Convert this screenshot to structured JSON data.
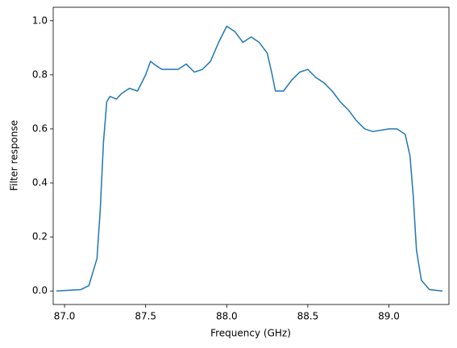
{
  "chart_data": {
    "type": "line",
    "xlabel": "Frequency (GHz)",
    "ylabel": "Filter response",
    "color": "#1f77b4",
    "x": [
      86.95,
      87.1,
      87.15,
      87.2,
      87.22,
      87.24,
      87.26,
      87.28,
      87.32,
      87.35,
      87.4,
      87.45,
      87.5,
      87.53,
      87.55,
      87.6,
      87.7,
      87.75,
      87.8,
      87.85,
      87.9,
      87.95,
      88.0,
      88.05,
      88.1,
      88.15,
      88.2,
      88.25,
      88.28,
      88.3,
      88.35,
      88.4,
      88.45,
      88.5,
      88.55,
      88.6,
      88.65,
      88.7,
      88.75,
      88.8,
      88.85,
      88.9,
      89.0,
      89.05,
      89.1,
      89.13,
      89.15,
      89.17,
      89.2,
      89.25,
      89.33
    ],
    "values": [
      0,
      0.005,
      0.02,
      0.12,
      0.3,
      0.55,
      0.7,
      0.72,
      0.71,
      0.73,
      0.75,
      0.74,
      0.8,
      0.85,
      0.84,
      0.82,
      0.82,
      0.84,
      0.81,
      0.82,
      0.85,
      0.92,
      0.98,
      0.96,
      0.92,
      0.94,
      0.92,
      0.88,
      0.8,
      0.74,
      0.74,
      0.78,
      0.81,
      0.82,
      0.79,
      0.77,
      0.74,
      0.7,
      0.67,
      0.63,
      0.6,
      0.59,
      0.6,
      0.6,
      0.58,
      0.5,
      0.35,
      0.15,
      0.04,
      0.005,
      0
    ],
    "xlim": [
      86.93,
      89.37
    ],
    "ylim": [
      -0.05,
      1.05
    ],
    "xticks": [
      {
        "value": 87,
        "label": "87.0"
      },
      87.5,
      {
        "value": 88,
        "label": "88.0"
      },
      88.5,
      {
        "value": 89,
        "label": "89.0"
      }
    ],
    "yticks": [
      {
        "value": 0,
        "label": "0.0"
      },
      0.2,
      0.4,
      0.6,
      0.8,
      {
        "value": 1,
        "label": "1.0"
      }
    ]
  }
}
